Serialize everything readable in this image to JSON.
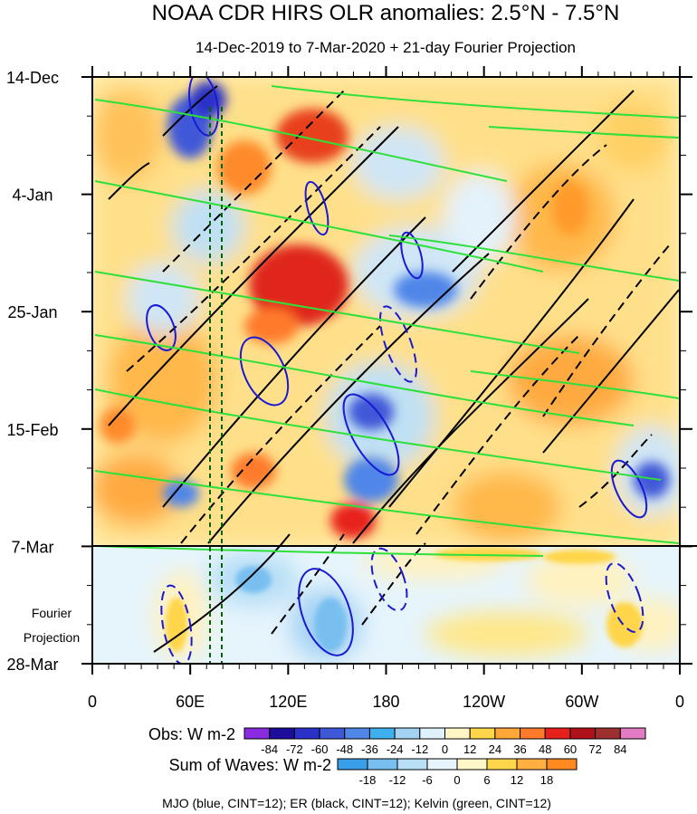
{
  "title": "NOAA CDR HIRS OLR anomalies: 2.5°N - 7.5°N",
  "subtitle": "14-Dec-2019 to 7-Mar-2020 + 21-day Fourier Projection",
  "projection_label_line1": "Fourier",
  "projection_label_line2": "Projection",
  "footer": "MJO (blue, CINT=12); ER (black, CINT=12); Kelvin (green, CINT=12)",
  "chart_data": {
    "type": "heatmap",
    "title": "NOAA CDR HIRS OLR anomalies: 2.5°N - 7.5°N",
    "subtitle": "14-Dec-2019 to 7-Mar-2020 + 21-day Fourier Projection",
    "x_ticks": [
      "0",
      "60E",
      "120E",
      "180",
      "120W",
      "60W",
      "0"
    ],
    "y_ticks": [
      "14-Dec",
      "4-Jan",
      "25-Jan",
      "15-Feb",
      "7-Mar",
      "28-Mar"
    ],
    "obs_title": "Obs: W m-2",
    "obs_levels": [
      -84,
      -72,
      -60,
      -48,
      -36,
      -24,
      -12,
      0,
      12,
      24,
      36,
      48,
      60,
      72,
      84
    ],
    "obs_colors": [
      "#8a2be2",
      "#1c0d9a",
      "#2a30c8",
      "#3f58d8",
      "#4f86e8",
      "#3fb0ee",
      "#a4d2f2",
      "#dff2fb",
      "#fff6c8",
      "#ffd64a",
      "#ffa838",
      "#ff7a2a",
      "#e8201c",
      "#b0101a",
      "#9e2f2f",
      "#e27ac4"
    ],
    "waves_title": "Sum of Waves: W m-2",
    "waves_levels": [
      -18,
      -12,
      -6,
      0,
      6,
      12,
      18
    ],
    "waves_colors": [
      "#3a9ee8",
      "#78bff0",
      "#b8dff6",
      "#e6f4fc",
      "#fff6c8",
      "#ffd64a",
      "#ffb040",
      "#ff8a20"
    ],
    "vertical_lines_lon": [
      71,
      77
    ],
    "projection_start": "7-Mar"
  }
}
